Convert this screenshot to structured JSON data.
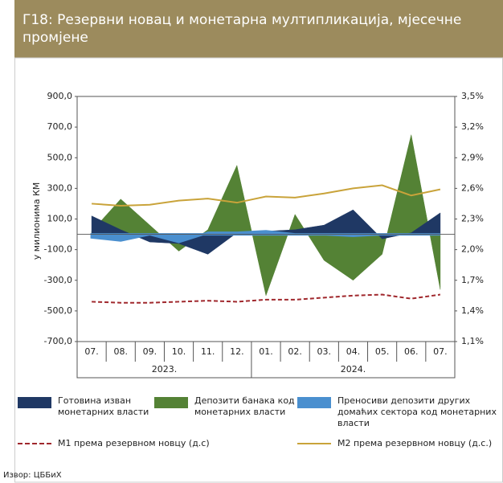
{
  "chart_data": {
    "type": "area",
    "title": "Г18: Резервни новац и монетарна мултипликација, мјесечне промјене",
    "ylabel": "у милионима КМ",
    "source": "Извор: ЦББиХ",
    "categories": [
      "07.",
      "08.",
      "09.",
      "10.",
      "11.",
      "12.",
      "01.",
      "02.",
      "03.",
      "04.",
      "05.",
      "06.",
      "07."
    ],
    "years": [
      "2023.",
      "2024."
    ],
    "ylim": [
      -700,
      900
    ],
    "yticks": [
      {
        "value": 900,
        "label": "900,0"
      },
      {
        "value": 700,
        "label": "700,0"
      },
      {
        "value": 500,
        "label": "500,0"
      },
      {
        "value": 300,
        "label": "300,0"
      },
      {
        "value": 100,
        "label": "100,0"
      },
      {
        "value": -100,
        "label": "-100,0"
      },
      {
        "value": -300,
        "label": "-300,0"
      },
      {
        "value": -500,
        "label": "-500,0"
      },
      {
        "value": -700,
        "label": "-700,0"
      }
    ],
    "y2lim": [
      1.1,
      3.5
    ],
    "y2ticks": [
      {
        "value": 3.5,
        "label": "3,5%"
      },
      {
        "value": 3.2,
        "label": "3,2%"
      },
      {
        "value": 2.9,
        "label": "2,9%"
      },
      {
        "value": 2.6,
        "label": "2,6%"
      },
      {
        "value": 2.3,
        "label": "2,3%"
      },
      {
        "value": 2.0,
        "label": "2,0%"
      },
      {
        "value": 1.7,
        "label": "1,7%"
      },
      {
        "value": 1.4,
        "label": "1,4%"
      },
      {
        "value": 1.1,
        "label": "1,1%"
      }
    ],
    "series": [
      {
        "name": "Депозити банака код монетарних власти",
        "color": "#548235",
        "kind": "area",
        "values": [
          20,
          230,
          60,
          -110,
          30,
          450,
          -400,
          130,
          -170,
          -300,
          -130,
          650,
          -360
        ]
      },
      {
        "name": "Готовина изван монетарних власти",
        "color": "#1f3864",
        "kind": "area",
        "values": [
          120,
          30,
          -50,
          -60,
          -130,
          10,
          20,
          30,
          60,
          160,
          -30,
          10,
          140
        ]
      },
      {
        "name": "Преносиви депозити других домаћих сектора код монетарних власти",
        "color": "#4a8fcf",
        "kind": "area",
        "values": [
          -20,
          -40,
          0,
          -50,
          10,
          10,
          20,
          0,
          0,
          -10,
          0,
          0,
          0
        ]
      },
      {
        "name": "М1 према резервном новцу (д.с)",
        "color": "#a0282d",
        "kind": "line",
        "dashed": true,
        "axis": "y2",
        "values": [
          1.49,
          1.48,
          1.48,
          1.49,
          1.5,
          1.49,
          1.51,
          1.51,
          1.53,
          1.55,
          1.56,
          1.52,
          1.56
        ]
      },
      {
        "name": "М2 према резервном новцу (д.с.)",
        "color": "#c9a33a",
        "kind": "line",
        "axis": "y2",
        "values": [
          2.45,
          2.43,
          2.44,
          2.48,
          2.5,
          2.46,
          2.52,
          2.51,
          2.55,
          2.6,
          2.63,
          2.53,
          2.59
        ]
      }
    ]
  }
}
